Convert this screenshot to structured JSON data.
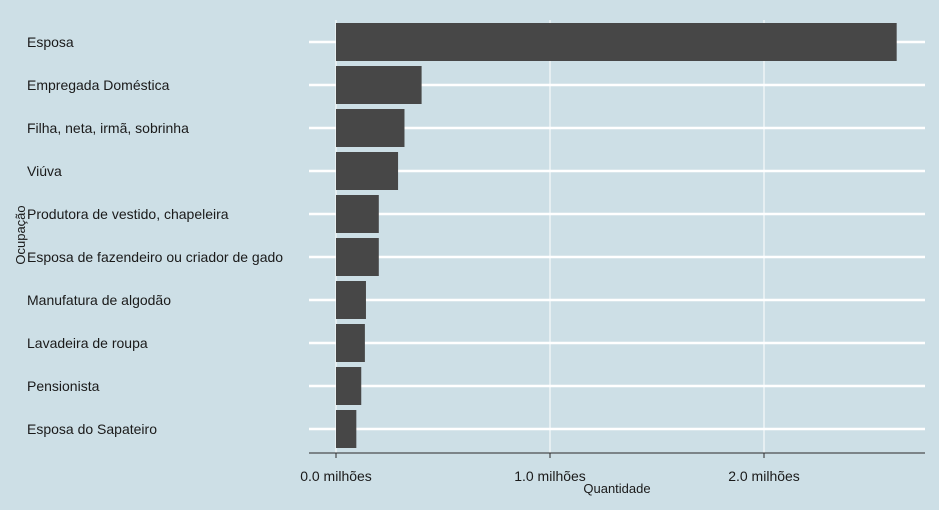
{
  "chart_data": {
    "type": "bar",
    "orientation": "horizontal",
    "title": "",
    "xlabel": "Quantidade",
    "ylabel": "Ocupação",
    "categories": [
      "Esposa",
      "Empregada Doméstica",
      "Filha, neta, irmã, sobrinha",
      "Viúva",
      "Produtora de vestido, chapeleira",
      "Esposa de fazendeiro ou criador de gado",
      "Manufatura de algodão",
      "Lavadeira de roupa",
      "Pensionista",
      "Esposa do Sapateiro"
    ],
    "values": [
      2620000,
      400000,
      320000,
      290000,
      200000,
      200000,
      140000,
      135000,
      118000,
      95000
    ],
    "xlim": [
      0,
      2700000
    ],
    "xticks": [
      0,
      1000000,
      2000000
    ],
    "xtick_labels": [
      "0.0 milhões",
      "1.0 milhões",
      "2.0 milhões"
    ],
    "grid": true,
    "legend": "none",
    "colors": {
      "background": "#cddfe6",
      "bar": "#474747",
      "grid": "#ffffff"
    }
  }
}
